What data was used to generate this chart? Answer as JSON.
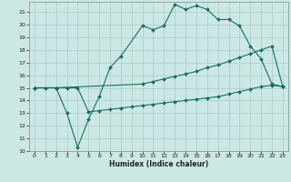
{
  "xlabel": "Humidex (Indice chaleur)",
  "xlim": [
    -0.5,
    23.5
  ],
  "ylim": [
    10,
    21.8
  ],
  "yticks": [
    10,
    11,
    12,
    13,
    14,
    15,
    16,
    17,
    18,
    19,
    20,
    21
  ],
  "xticks": [
    0,
    1,
    2,
    3,
    4,
    5,
    6,
    7,
    8,
    9,
    10,
    11,
    12,
    13,
    14,
    15,
    16,
    17,
    18,
    19,
    20,
    21,
    22,
    23
  ],
  "bg_color": "#cce8e4",
  "grid_color": "#aaccca",
  "line_color": "#1a6e64",
  "line1": {
    "x": [
      0,
      1,
      2,
      3,
      4,
      5,
      6,
      7,
      8,
      10,
      11,
      12,
      13,
      14,
      15,
      16,
      17,
      18,
      19,
      20,
      21,
      22,
      23
    ],
    "y": [
      15,
      15,
      15,
      13,
      10.3,
      12.5,
      14.3,
      16.6,
      17.5,
      19.9,
      19.6,
      19.9,
      21.6,
      21.2,
      21.5,
      21.2,
      20.4,
      20.4,
      19.9,
      18.3,
      17.3,
      15.3,
      15.1
    ]
  },
  "line2": {
    "x": [
      0,
      2,
      10,
      11,
      12,
      13,
      14,
      15,
      16,
      17,
      18,
      19,
      20,
      21,
      22,
      23
    ],
    "y": [
      15,
      15,
      15.3,
      15.5,
      15.7,
      15.9,
      16.1,
      16.3,
      16.6,
      16.8,
      17.1,
      17.4,
      17.7,
      18.0,
      18.3,
      15.1
    ]
  },
  "line3": {
    "x": [
      0,
      2,
      3,
      4,
      5,
      6,
      7,
      8,
      9,
      10,
      11,
      12,
      13,
      14,
      15,
      16,
      17,
      18,
      19,
      20,
      21,
      22,
      23
    ],
    "y": [
      15,
      15,
      15,
      15,
      13.1,
      13.2,
      13.3,
      13.4,
      13.5,
      13.6,
      13.7,
      13.8,
      13.9,
      14.0,
      14.1,
      14.2,
      14.3,
      14.5,
      14.7,
      14.9,
      15.1,
      15.2,
      15.1
    ]
  }
}
